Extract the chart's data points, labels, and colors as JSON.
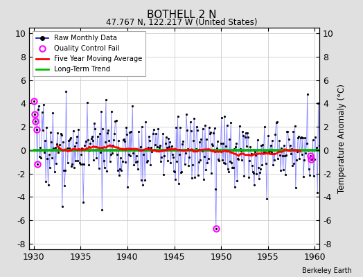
{
  "title": "BOTHELL 2 N",
  "subtitle": "47.767 N, 122.217 W (United States)",
  "watermark": "Berkeley Earth",
  "ylabel": "Temperature Anomaly (°C)",
  "xlim": [
    1929.5,
    1960.5
  ],
  "ylim": [
    -8.5,
    10.5
  ],
  "yticks": [
    -8,
    -6,
    -4,
    -2,
    0,
    2,
    4,
    6,
    8,
    10
  ],
  "xticks": [
    1930,
    1935,
    1940,
    1945,
    1950,
    1955,
    1960
  ],
  "bg_color": "#e0e0e0",
  "plot_bg_color": "#ffffff",
  "raw_line_color": "#8888ff",
  "raw_marker_color": "#000000",
  "qc_fail_color": "#ff00ff",
  "moving_avg_color": "#ff0000",
  "trend_color": "#00bb00",
  "grid_color": "#cccccc",
  "seed": 17,
  "start_year": 1930,
  "end_year": 1960,
  "qc_fail_months": [
    0,
    1,
    2,
    3,
    4,
    233,
    354,
    355
  ],
  "qc_fail_values": [
    4.2,
    3.1,
    2.5,
    1.8,
    -1.2,
    -6.7,
    -0.5,
    -0.8
  ]
}
